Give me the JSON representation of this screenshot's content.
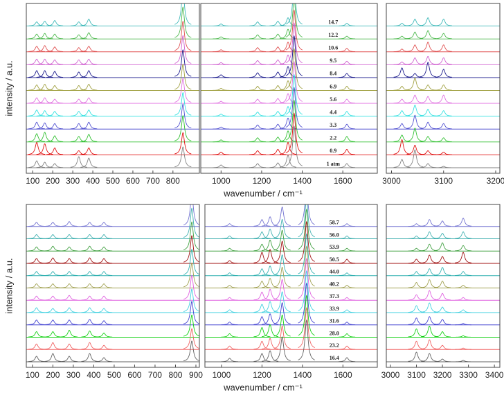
{
  "chart_data": [
    {
      "type": "line",
      "xlabel": "wavenumber / cm⁻¹",
      "ylabel": "intensity / a.u.",
      "xlim": [
        68,
        932
      ],
      "xticks": [
        100,
        200,
        300,
        400,
        500,
        600,
        700,
        800
      ],
      "x": [
        120,
        160,
        210,
        330,
        380,
        850
      ],
      "series": [
        {
          "color": "#3cb8b8",
          "values": [
            0.3,
            0.35,
            0.4,
            0.3,
            0.5,
            2.6
          ]
        },
        {
          "color": "#4cb84c",
          "values": [
            0.35,
            0.4,
            0.35,
            0.3,
            0.45,
            2.3
          ]
        },
        {
          "color": "#e05050",
          "values": [
            0.4,
            0.45,
            0.35,
            0.3,
            0.4,
            2.2
          ]
        },
        {
          "color": "#d060d0",
          "values": [
            0.4,
            0.4,
            0.35,
            0.35,
            0.4,
            2.1
          ]
        },
        {
          "color": "#1a1a8c",
          "values": [
            0.5,
            0.5,
            0.45,
            0.4,
            0.5,
            2.0
          ]
        },
        {
          "color": "#a0a040",
          "values": [
            0.4,
            0.45,
            0.35,
            0.35,
            0.45,
            1.9
          ]
        },
        {
          "color": "#e070e0",
          "values": [
            0.4,
            0.4,
            0.3,
            0.3,
            0.4,
            1.8
          ]
        },
        {
          "color": "#30e0e0",
          "values": [
            0.45,
            0.4,
            0.35,
            0.35,
            0.45,
            1.7
          ]
        },
        {
          "color": "#5050d0",
          "values": [
            0.5,
            0.45,
            0.4,
            0.4,
            0.5,
            1.8
          ]
        },
        {
          "color": "#30c030",
          "values": [
            0.6,
            0.7,
            0.45,
            0.4,
            0.55,
            1.9
          ]
        },
        {
          "color": "#e01010",
          "values": [
            0.9,
            0.8,
            0.5,
            0.3,
            0.5,
            1.6
          ]
        },
        {
          "color": "#808080",
          "values": [
            0.5,
            0.4,
            0.3,
            0.8,
            0.7,
            1.5
          ]
        }
      ]
    },
    {
      "type": "line",
      "xlim": [
        900,
        1770
      ],
      "xticks": [
        1000,
        1200,
        1400,
        1600
      ],
      "x": [
        1000,
        1180,
        1280,
        1330,
        1360,
        1620
      ],
      "series": [
        {
          "name": "14.7",
          "color": "#3cb8b8",
          "values": [
            0.15,
            0.3,
            0.35,
            0.6,
            3.0,
            0.2
          ]
        },
        {
          "name": "12.2",
          "color": "#4cb84c",
          "values": [
            0.15,
            0.3,
            0.35,
            0.7,
            3.0,
            0.2
          ]
        },
        {
          "name": "10.6",
          "color": "#e05050",
          "values": [
            0.15,
            0.3,
            0.35,
            0.7,
            3.0,
            0.25
          ]
        },
        {
          "name": "9.5",
          "color": "#d060d0",
          "values": [
            0.15,
            0.3,
            0.35,
            0.7,
            3.0,
            0.25
          ]
        },
        {
          "name": "8.4",
          "color": "#1a1a8c",
          "values": [
            0.2,
            0.35,
            0.4,
            0.8,
            3.0,
            0.3
          ]
        },
        {
          "name": "6.9",
          "color": "#a0a040",
          "values": [
            0.15,
            0.3,
            0.35,
            0.7,
            3.0,
            0.3
          ]
        },
        {
          "name": "5.6",
          "color": "#e070e0",
          "values": [
            0.15,
            0.3,
            0.35,
            0.7,
            3.0,
            0.3
          ]
        },
        {
          "name": "4.4",
          "color": "#30e0e0",
          "values": [
            0.15,
            0.3,
            0.35,
            0.7,
            3.0,
            0.35
          ]
        },
        {
          "name": "3.3",
          "color": "#5050d0",
          "values": [
            0.15,
            0.3,
            0.35,
            0.8,
            3.0,
            0.35
          ]
        },
        {
          "name": "2.2",
          "color": "#30c030",
          "values": [
            0.15,
            0.3,
            0.35,
            0.8,
            3.0,
            0.4
          ]
        },
        {
          "name": "0.9",
          "color": "#e01010",
          "values": [
            0.2,
            0.3,
            0.4,
            0.9,
            3.0,
            0.4
          ]
        },
        {
          "name": "1 atm",
          "color": "#808080",
          "values": [
            0.2,
            0.3,
            0.35,
            0.9,
            3.0,
            0.3
          ]
        }
      ]
    },
    {
      "type": "line",
      "xlim": [
        2990,
        3208
      ],
      "xticks": [
        3000,
        3100,
        3200
      ],
      "x": [
        3020,
        3045,
        3070,
        3100
      ],
      "series": [
        {
          "color": "#3cb8b8",
          "values": [
            0.2,
            0.5,
            0.6,
            0.5
          ]
        },
        {
          "color": "#4cb84c",
          "values": [
            0.2,
            0.5,
            0.6,
            0.4
          ]
        },
        {
          "color": "#e05050",
          "values": [
            0.2,
            0.5,
            0.7,
            0.5
          ]
        },
        {
          "color": "#d060d0",
          "values": [
            0.2,
            0.5,
            0.6,
            0.5
          ]
        },
        {
          "color": "#1a1a8c",
          "values": [
            0.7,
            0.3,
            1.1,
            0.6
          ]
        },
        {
          "color": "#a0a040",
          "values": [
            0.3,
            0.9,
            0.4,
            0.4
          ]
        },
        {
          "color": "#e070e0",
          "values": [
            0.3,
            0.6,
            0.5,
            0.6
          ]
        },
        {
          "color": "#30e0e0",
          "values": [
            0.4,
            0.8,
            0.5,
            0.4
          ]
        },
        {
          "color": "#5050d0",
          "values": [
            0.4,
            1.0,
            0.5,
            0.4
          ]
        },
        {
          "color": "#30c030",
          "values": [
            0.5,
            1.0,
            0.4,
            0.3
          ]
        },
        {
          "color": "#e01010",
          "values": [
            1.1,
            0.7,
            0.3,
            0.2
          ]
        },
        {
          "color": "#808080",
          "values": [
            0.6,
            1.3,
            0.3,
            0.1
          ]
        }
      ]
    },
    {
      "type": "line",
      "xlabel": "wavenumber / cm⁻¹",
      "ylabel": "intensity / a.u.",
      "xlim": [
        70,
        917
      ],
      "xticks": [
        100,
        200,
        300,
        400,
        500,
        600,
        700,
        800,
        900
      ],
      "x": [
        120,
        200,
        280,
        380,
        450,
        880
      ],
      "series": [
        {
          "color": "#7070d0",
          "values": [
            0.3,
            0.3,
            0.35,
            0.3,
            0.3,
            2.4
          ]
        },
        {
          "color": "#40b0b0",
          "values": [
            0.3,
            0.3,
            0.3,
            0.3,
            0.3,
            2.2
          ]
        },
        {
          "color": "#40a040",
          "values": [
            0.3,
            0.35,
            0.3,
            0.35,
            0.3,
            2.1
          ]
        },
        {
          "color": "#a01010",
          "values": [
            0.35,
            0.4,
            0.35,
            0.4,
            0.35,
            2.0
          ]
        },
        {
          "color": "#30b0b0",
          "values": [
            0.3,
            0.3,
            0.3,
            0.3,
            0.3,
            1.9
          ]
        },
        {
          "color": "#a0a050",
          "values": [
            0.3,
            0.3,
            0.3,
            0.3,
            0.3,
            1.8
          ]
        },
        {
          "color": "#e060e0",
          "values": [
            0.3,
            0.3,
            0.35,
            0.3,
            0.3,
            1.8
          ]
        },
        {
          "color": "#40d0e0",
          "values": [
            0.35,
            0.3,
            0.35,
            0.35,
            0.3,
            1.7
          ]
        },
        {
          "color": "#4040d0",
          "values": [
            0.35,
            0.35,
            0.35,
            0.4,
            0.3,
            1.7
          ]
        },
        {
          "color": "#10d010",
          "values": [
            0.4,
            0.4,
            0.5,
            0.45,
            0.3,
            1.6
          ]
        },
        {
          "color": "#f06060",
          "values": [
            0.4,
            0.5,
            0.4,
            0.5,
            0.3,
            1.5
          ]
        },
        {
          "color": "#606060",
          "values": [
            0.4,
            0.6,
            0.4,
            0.6,
            0.3,
            1.5
          ]
        }
      ]
    },
    {
      "type": "line",
      "xlim": [
        918,
        1770
      ],
      "xticks": [
        1000,
        1200,
        1400,
        1600
      ],
      "x": [
        1040,
        1200,
        1240,
        1300,
        1420,
        1620
      ],
      "series": [
        {
          "name": "58.7",
          "color": "#7070d0",
          "values": [
            0.2,
            0.5,
            0.7,
            1.4,
            3.0,
            0.2
          ]
        },
        {
          "name": "56.0",
          "color": "#40b0b0",
          "values": [
            0.2,
            0.5,
            0.7,
            1.4,
            3.0,
            0.2
          ]
        },
        {
          "name": "53.9",
          "color": "#40a040",
          "values": [
            0.2,
            0.5,
            0.8,
            1.5,
            3.0,
            0.2
          ]
        },
        {
          "name": "50.5",
          "color": "#a01010",
          "values": [
            0.2,
            0.8,
            1.0,
            1.6,
            3.0,
            0.3
          ]
        },
        {
          "name": "44.0",
          "color": "#30b0b0",
          "values": [
            0.2,
            0.5,
            0.7,
            1.5,
            3.0,
            0.2
          ]
        },
        {
          "name": "40.2",
          "color": "#a0a050",
          "values": [
            0.2,
            0.5,
            0.7,
            1.5,
            3.0,
            0.2
          ]
        },
        {
          "name": "37.3",
          "color": "#e060e0",
          "values": [
            0.2,
            0.6,
            0.8,
            1.5,
            3.0,
            0.2
          ]
        },
        {
          "name": "33.9",
          "color": "#40d0e0",
          "values": [
            0.2,
            0.6,
            0.8,
            1.5,
            3.0,
            0.2
          ]
        },
        {
          "name": "31.6",
          "color": "#4040d0",
          "values": [
            0.2,
            0.6,
            0.8,
            1.6,
            3.0,
            0.2
          ]
        },
        {
          "name": "28.0",
          "color": "#10d010",
          "values": [
            0.25,
            0.7,
            0.9,
            1.6,
            3.0,
            0.25
          ]
        },
        {
          "name": "23.2",
          "color": "#f06060",
          "values": [
            0.25,
            0.6,
            0.8,
            1.7,
            3.0,
            0.25
          ]
        },
        {
          "name": "16.4",
          "color": "#606060",
          "values": [
            0.25,
            0.6,
            0.8,
            1.8,
            3.0,
            0.3
          ]
        }
      ]
    },
    {
      "type": "line",
      "xlim": [
        2984,
        3421
      ],
      "xticks": [
        3000,
        3100,
        3200,
        3300,
        3400
      ],
      "x": [
        3100,
        3150,
        3200,
        3280
      ],
      "series": [
        {
          "color": "#7070d0",
          "values": [
            0.2,
            0.5,
            0.4,
            0.6
          ]
        },
        {
          "color": "#40b0b0",
          "values": [
            0.2,
            0.5,
            0.4,
            0.5
          ]
        },
        {
          "color": "#40a040",
          "values": [
            0.2,
            0.5,
            0.6,
            0.4
          ]
        },
        {
          "color": "#a01010",
          "values": [
            0.3,
            0.6,
            0.5,
            0.8
          ]
        },
        {
          "color": "#30b0b0",
          "values": [
            0.3,
            0.5,
            0.6,
            0.3
          ]
        },
        {
          "color": "#a0a050",
          "values": [
            0.4,
            0.6,
            0.5,
            0.2
          ]
        },
        {
          "color": "#e060e0",
          "values": [
            0.4,
            0.7,
            0.5,
            0.2
          ]
        },
        {
          "color": "#40d0e0",
          "values": [
            0.5,
            0.7,
            0.4,
            0.2
          ]
        },
        {
          "color": "#4040d0",
          "values": [
            0.5,
            0.6,
            0.4,
            0.1
          ]
        },
        {
          "color": "#10d010",
          "values": [
            0.6,
            0.8,
            0.4,
            0.1
          ]
        },
        {
          "color": "#f06060",
          "values": [
            0.6,
            0.7,
            0.3,
            0.1
          ]
        },
        {
          "color": "#606060",
          "values": [
            0.7,
            0.6,
            0.2,
            0.1
          ]
        }
      ]
    }
  ]
}
